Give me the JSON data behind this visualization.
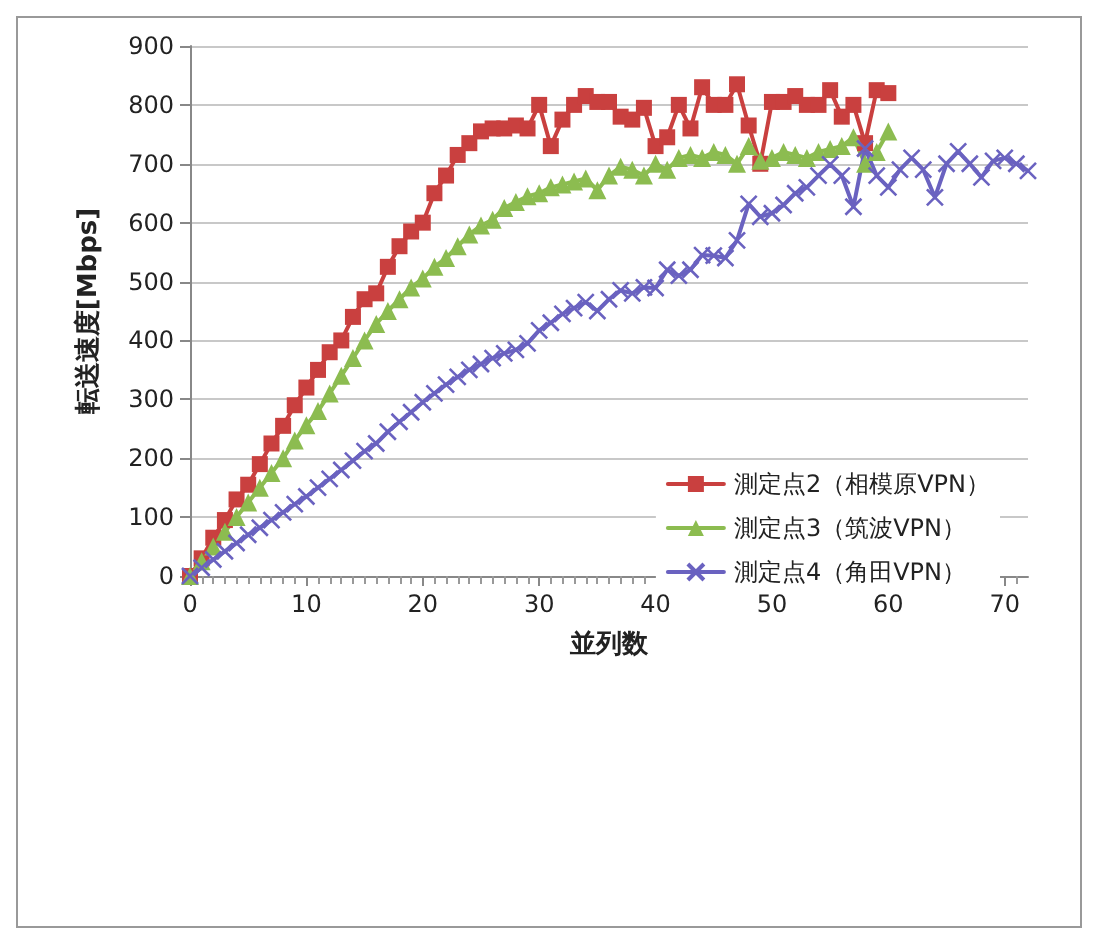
{
  "chart_data": {
    "type": "line",
    "xlabel": "並列数",
    "ylabel": "転送速度[Mbps]",
    "xlim": [
      0,
      72
    ],
    "xticks": [
      0,
      10,
      20,
      30,
      40,
      50,
      60,
      70
    ],
    "ylim": [
      0,
      900
    ],
    "yticks": [
      0,
      100,
      200,
      300,
      400,
      500,
      600,
      700,
      800,
      900
    ],
    "grid": "y",
    "legend": "bottom right",
    "line_style": "solid",
    "series": [
      {
        "name": "測定点2（相模原VPN）",
        "color": "#c9403f",
        "marker": "square",
        "x": [
          0,
          1,
          2,
          3,
          4,
          5,
          6,
          7,
          8,
          9,
          10,
          11,
          12,
          13,
          14,
          15,
          16,
          17,
          18,
          19,
          20,
          21,
          22,
          23,
          24,
          25,
          26,
          27,
          28,
          29,
          30,
          31,
          32,
          33,
          34,
          35,
          36,
          37,
          38,
          39,
          40,
          41,
          42,
          43,
          44,
          45,
          46,
          47,
          48,
          49,
          50,
          51,
          52,
          53,
          54,
          55,
          56,
          57,
          58,
          59,
          60
        ],
        "values": [
          0,
          30,
          65,
          95,
          130,
          155,
          190,
          225,
          255,
          290,
          320,
          350,
          380,
          400,
          440,
          470,
          480,
          525,
          560,
          585,
          600,
          650,
          680,
          715,
          735,
          755,
          760,
          760,
          765,
          760,
          800,
          730,
          775,
          800,
          815,
          805,
          805,
          780,
          775,
          795,
          730,
          745,
          800,
          760,
          830,
          800,
          800,
          835,
          765,
          700,
          805,
          805,
          815,
          800,
          800,
          825,
          780,
          800,
          735,
          825,
          820
        ]
      },
      {
        "name": "測定点3（筑波VPN）",
        "color": "#8cbc50",
        "marker": "triangle",
        "x": [
          0,
          1,
          2,
          3,
          4,
          5,
          6,
          7,
          8,
          9,
          10,
          11,
          12,
          13,
          14,
          15,
          16,
          17,
          18,
          19,
          20,
          21,
          22,
          23,
          24,
          25,
          26,
          27,
          28,
          29,
          30,
          31,
          32,
          33,
          34,
          35,
          36,
          37,
          38,
          39,
          40,
          41,
          42,
          43,
          44,
          45,
          46,
          47,
          48,
          49,
          50,
          51,
          52,
          53,
          54,
          55,
          56,
          57,
          58,
          59,
          60
        ],
        "values": [
          0,
          25,
          50,
          75,
          100,
          125,
          150,
          175,
          200,
          230,
          256,
          280,
          310,
          340,
          370,
          400,
          428,
          450,
          470,
          490,
          505,
          525,
          540,
          560,
          580,
          595,
          605,
          625,
          635,
          645,
          650,
          660,
          665,
          670,
          675,
          655,
          680,
          695,
          690,
          680,
          700,
          690,
          710,
          715,
          710,
          720,
          715,
          700,
          730,
          705,
          710,
          720,
          715,
          710,
          720,
          725,
          730,
          745,
          700,
          720,
          755
        ]
      },
      {
        "name": "測定点4（角田VPN）",
        "color": "#6a62c0",
        "marker": "cross",
        "x": [
          0,
          1,
          2,
          3,
          4,
          5,
          6,
          7,
          8,
          9,
          10,
          11,
          12,
          13,
          14,
          15,
          16,
          17,
          18,
          19,
          20,
          21,
          22,
          23,
          24,
          25,
          26,
          27,
          28,
          29,
          30,
          31,
          32,
          33,
          34,
          35,
          36,
          37,
          38,
          39,
          40,
          41,
          42,
          43,
          44,
          45,
          46,
          47,
          48,
          49,
          50,
          51,
          52,
          53,
          54,
          55,
          56,
          57,
          58,
          59,
          60,
          61,
          62,
          63,
          64,
          65,
          66,
          67,
          68,
          69,
          70,
          71,
          72
        ],
        "values": [
          0,
          14,
          28,
          42,
          56,
          70,
          82,
          95,
          108,
          122,
          135,
          150,
          165,
          180,
          196,
          212,
          225,
          245,
          262,
          278,
          295,
          310,
          325,
          338,
          350,
          360,
          370,
          378,
          384,
          395,
          417,
          430,
          445,
          455,
          465,
          450,
          470,
          485,
          480,
          490,
          489,
          520,
          510,
          520,
          545,
          544,
          540,
          570,
          632,
          610,
          616,
          630,
          650,
          660,
          680,
          699,
          680,
          627,
          726,
          680,
          660,
          690,
          710,
          690,
          643,
          700,
          721,
          700,
          677,
          705,
          710,
          700,
          688
        ]
      }
    ]
  }
}
